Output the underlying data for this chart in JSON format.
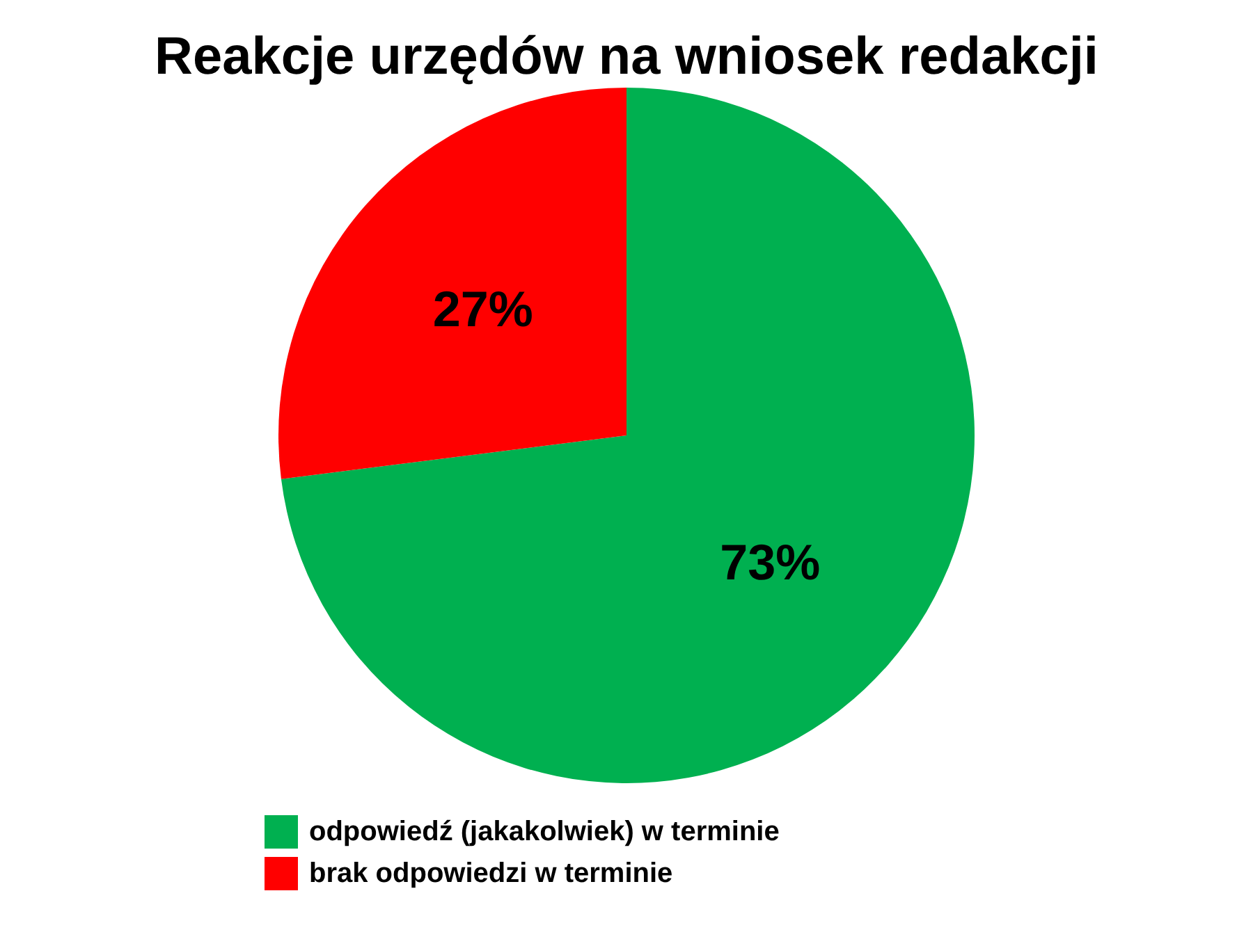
{
  "chart_data": {
    "type": "pie",
    "title": "Reakcje urzędów na wniosek redakcji",
    "categories": [
      "odpowiedź (jakakolwiek) w terminie",
      "brak odpowiedzi w terminie"
    ],
    "values": [
      73,
      27
    ],
    "colors": [
      "#00b050",
      "#ff0000"
    ],
    "value_labels": [
      "73%",
      "27%"
    ],
    "legend": "bottom left"
  }
}
